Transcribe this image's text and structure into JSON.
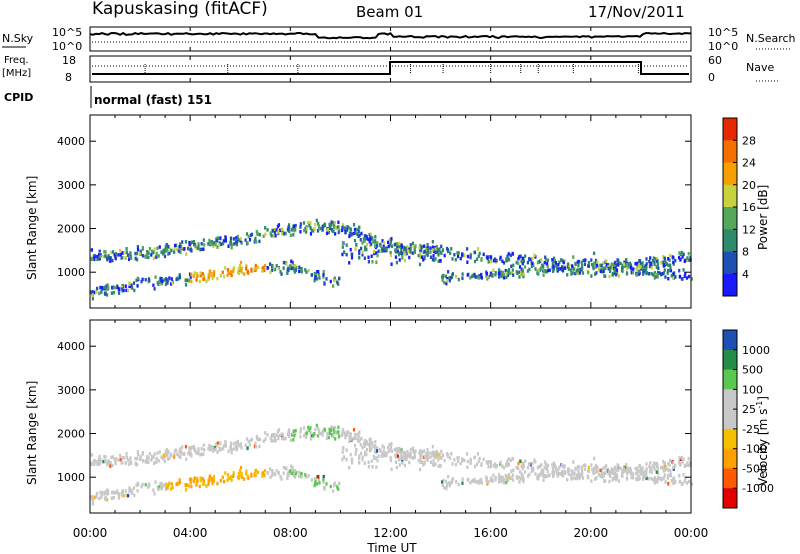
{
  "header": {
    "station": "Kapuskasing (fitACF)",
    "beam": "Beam 01",
    "date": "17/Nov/2011"
  },
  "panels": {
    "nsky": {
      "left_label": "N.Sky",
      "right_label": "N.Search",
      "left_ticks": [
        "10^5",
        "10^0"
      ],
      "right_ticks": [
        "10^5",
        "10^0"
      ]
    },
    "freq": {
      "left_label_1": "Freq.",
      "left_label_2": "[MHz]",
      "right_label": "Nave",
      "left_ticks": [
        "18",
        "8"
      ],
      "right_ticks": [
        "60",
        "0"
      ]
    },
    "cpid": {
      "label": "CPID",
      "value": "normal (fast) 151"
    }
  },
  "time_axis": {
    "label": "Time UT",
    "ticks": [
      "00:00",
      "04:00",
      "08:00",
      "12:00",
      "16:00",
      "20:00",
      "00:00"
    ]
  },
  "colors": {
    "power_scale": [
      "#1a1aff",
      "#1e50b4",
      "#2f8a6a",
      "#55a85a",
      "#c8d23c",
      "#f5a000",
      "#f56e00",
      "#e62800"
    ],
    "velocity_scale": [
      "#e00000",
      "#ff5a00",
      "#ffa000",
      "#f5c000",
      "#c8c8c8",
      "#c8c8c8",
      "#5ac850",
      "#238c46",
      "#1e50b4"
    ]
  },
  "chart_data": [
    {
      "type": "heatmap",
      "name": "power",
      "ylabel": "Slant Range [km]",
      "yticks": [
        1000,
        2000,
        3000,
        4000
      ],
      "ylim": [
        180,
        4600
      ],
      "colorbar_label": "Power [dB]",
      "colorbar_ticks": [
        "28",
        "24",
        "20",
        "16",
        "12",
        "8",
        "4"
      ],
      "x_hours": [
        0,
        2,
        4,
        6,
        8,
        10,
        12,
        14,
        16,
        18,
        20,
        22,
        24
      ],
      "lower_band_center_km": [
        550,
        800,
        900,
        1100,
        1150,
        800,
        null,
        900,
        1000,
        1100,
        1100,
        1050,
        950
      ],
      "upper_band_center_km": [
        1400,
        1450,
        1650,
        1800,
        2050,
        2050,
        1600,
        1500,
        1350,
        1250,
        1250,
        1200,
        1400
      ],
      "grid": false
    },
    {
      "type": "heatmap",
      "name": "velocity",
      "ylabel": "Slant Range [km]",
      "yticks": [
        1000,
        2000,
        3000,
        4000
      ],
      "ylim": [
        180,
        4600
      ],
      "colorbar_label": "Velocity [m s^-1]",
      "colorbar_ticks": [
        "1000",
        "500",
        "100",
        "25",
        "-25",
        "-100",
        "-500",
        "-1000"
      ],
      "grid": false
    }
  ],
  "axis_labels": {
    "power_y": "Slant Range [km]",
    "velocity_y": "Slant Range [km]",
    "power_cb": "Power [dB]",
    "velocity_cb_main": "Velocity [m s",
    "velocity_cb_sup": "-1",
    "velocity_cb_end": "]"
  }
}
